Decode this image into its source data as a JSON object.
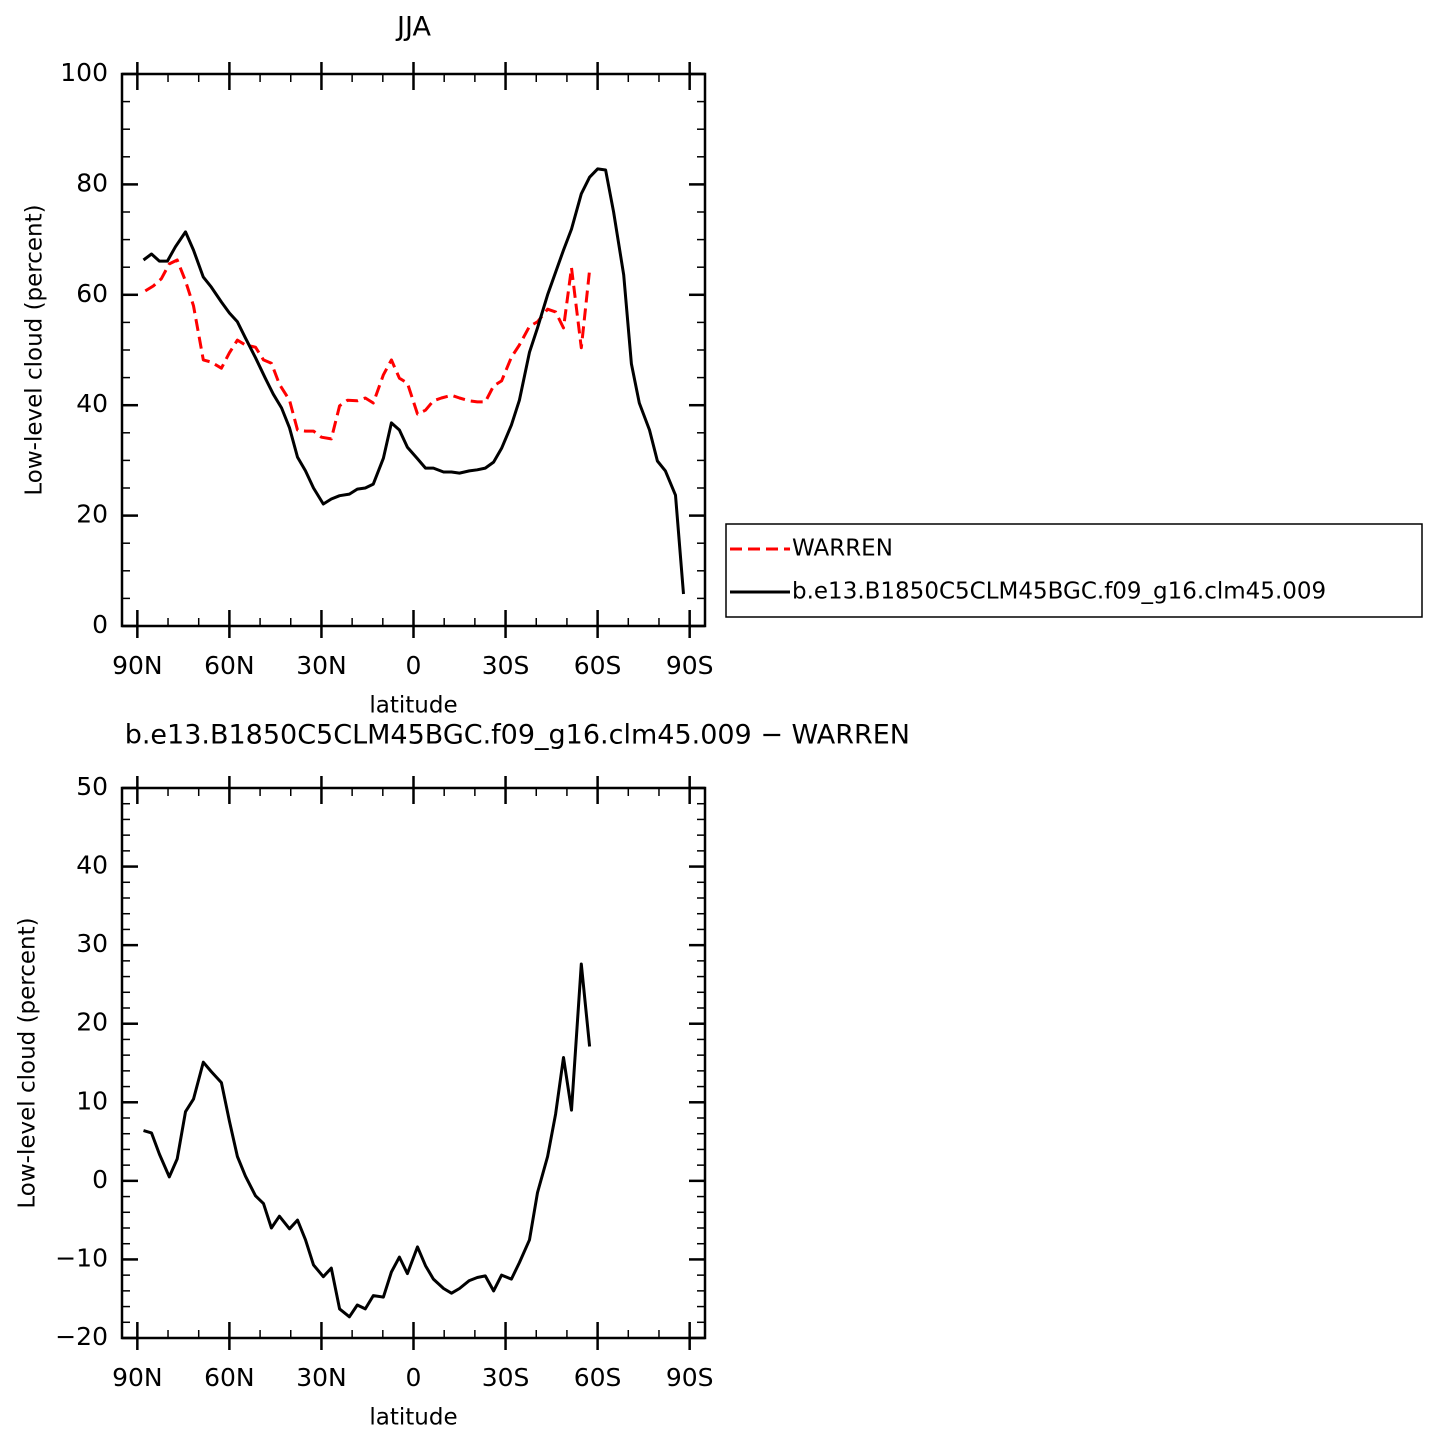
{
  "chart_data": [
    {
      "type": "line",
      "title": "JJA",
      "xlabel": "latitude",
      "ylabel": "Low-level cloud (percent)",
      "xlim": [
        95,
        -95
      ],
      "xticks": [
        {
          "value": 90,
          "label": "90N"
        },
        {
          "value": 60,
          "label": "60N"
        },
        {
          "value": 30,
          "label": "30N"
        },
        0,
        {
          "value": -30,
          "label": "30S"
        },
        {
          "value": -60,
          "label": "60S"
        },
        {
          "value": -90,
          "label": "90S"
        }
      ],
      "xminorticks": [
        80,
        70,
        50,
        40,
        20,
        10,
        -10,
        -20,
        -40,
        -50,
        -70,
        -80
      ],
      "ylim": [
        0,
        100
      ],
      "yticks": [
        0,
        20,
        40,
        60,
        80,
        100
      ],
      "yminorticks": [
        5,
        10,
        15,
        25,
        30,
        35,
        45,
        50,
        55,
        65,
        70,
        75,
        85,
        90,
        95
      ],
      "legend": "right",
      "series": [
        {
          "name": "WARREN",
          "color": "#ff0000",
          "dash": true,
          "x": [
            87.4,
            84.8,
            82.2,
            79.6,
            77.0,
            74.3,
            71.7,
            68.5,
            65.9,
            62.6,
            60.0,
            57.4,
            54.8,
            51.5,
            48.9,
            46.3,
            43.7,
            40.4,
            37.8,
            35.2,
            32.6,
            30.0,
            26.8,
            24.1,
            21.5,
            18.3,
            15.7,
            13.1,
            9.8,
            7.2,
            4.6,
            2.0,
            -1.3,
            -3.9,
            -6.5,
            -9.1,
            -12.4,
            -15.0,
            -18.2,
            -20.8,
            -23.4,
            -26.1,
            -28.7,
            -31.9,
            -34.5,
            -37.8,
            -40.4,
            -43.7,
            -46.3,
            -48.9,
            -51.5,
            -54.7,
            -57.4
          ],
          "values": [
            60.7,
            61.6,
            62.9,
            65.6,
            66.3,
            62.5,
            58.0,
            48.2,
            47.8,
            46.7,
            49.5,
            51.8,
            50.9,
            50.5,
            48.2,
            47.6,
            43.8,
            40.9,
            35.5,
            35.3,
            35.3,
            34.2,
            33.9,
            39.9,
            40.9,
            40.8,
            41.3,
            40.4,
            45.5,
            48.2,
            44.9,
            44.0,
            38.4,
            39.1,
            40.8,
            41.3,
            41.8,
            41.3,
            40.8,
            40.6,
            40.6,
            43.5,
            44.4,
            48.7,
            50.9,
            54.3,
            55.1,
            57.4,
            56.9,
            54.0,
            64.9,
            50.4,
            64.5
          ]
        },
        {
          "name": "b.e13.B1850C5CLM45BGC.f09_g16.clm45.009",
          "color": "#000000",
          "dash": false,
          "x": [
            88.0,
            85.4,
            82.8,
            80.2,
            77.6,
            74.3,
            71.7,
            68.5,
            65.9,
            62.6,
            60.0,
            57.4,
            54.8,
            51.5,
            48.3,
            45.7,
            43.0,
            40.4,
            37.8,
            35.2,
            32.6,
            29.4,
            26.8,
            24.1,
            20.9,
            18.3,
            15.7,
            13.1,
            9.8,
            7.2,
            4.6,
            2.0,
            -1.3,
            -3.9,
            -6.5,
            -9.8,
            -12.4,
            -15.0,
            -18.2,
            -20.8,
            -23.4,
            -26.1,
            -28.7,
            -31.9,
            -34.5,
            -37.8,
            -40.4,
            -43.7,
            -46.3,
            -48.9,
            -51.5,
            -54.7,
            -57.4,
            -60.0,
            -62.6,
            -65.2,
            -68.5,
            -71.0,
            -73.6,
            -76.9,
            -79.5,
            -82.1,
            -85.4,
            -88.0
          ],
          "values": [
            66.3,
            67.4,
            66.1,
            66.1,
            68.7,
            71.4,
            68.1,
            63.2,
            61.4,
            58.7,
            56.7,
            55.1,
            52.2,
            48.6,
            44.9,
            42.0,
            39.5,
            35.9,
            30.6,
            28.1,
            25.0,
            22.1,
            23.0,
            23.6,
            23.9,
            24.8,
            25.0,
            25.7,
            30.4,
            36.8,
            35.5,
            32.4,
            30.3,
            28.6,
            28.6,
            27.9,
            27.9,
            27.7,
            28.1,
            28.3,
            28.6,
            29.7,
            32.2,
            36.4,
            40.9,
            49.6,
            54.0,
            60.0,
            64.1,
            68.1,
            71.9,
            78.3,
            81.3,
            82.8,
            82.6,
            75.0,
            63.6,
            47.5,
            40.4,
            35.5,
            29.9,
            28.1,
            23.7,
            5.8
          ]
        }
      ]
    },
    {
      "type": "line",
      "title": "b.e13.B1850C5CLM45BGC.f09_g16.clm45.009 − WARREN",
      "xlabel": "latitude",
      "ylabel": "Low-level cloud (percent)",
      "xlim": [
        95,
        -95
      ],
      "xticks": [
        {
          "value": 90,
          "label": "90N"
        },
        {
          "value": 60,
          "label": "60N"
        },
        {
          "value": 30,
          "label": "30N"
        },
        0,
        {
          "value": -30,
          "label": "30S"
        },
        {
          "value": -60,
          "label": "60S"
        },
        {
          "value": -90,
          "label": "90S"
        }
      ],
      "xminorticks": [
        80,
        70,
        50,
        40,
        20,
        10,
        -10,
        -20,
        -40,
        -50,
        -70,
        -80
      ],
      "ylim": [
        -20,
        50
      ],
      "yticks": [
        {
          "value": -20,
          "label": "−20"
        },
        {
          "value": -10,
          "label": "−10"
        },
        0,
        10,
        20,
        30,
        40,
        50
      ],
      "yminorticks": [
        -18,
        -16,
        -14,
        -12,
        -8,
        -6,
        -4,
        -2,
        2,
        4,
        6,
        8,
        12,
        14,
        16,
        18,
        22,
        24,
        26,
        28,
        32,
        34,
        36,
        38,
        42,
        44,
        46,
        48
      ],
      "series": [
        {
          "color": "#000000",
          "dash": false,
          "x": [
            88.0,
            85.4,
            82.8,
            79.6,
            77.0,
            74.3,
            71.7,
            68.5,
            65.9,
            62.6,
            60.0,
            57.4,
            54.8,
            51.5,
            48.9,
            46.3,
            43.7,
            40.4,
            37.8,
            35.2,
            32.6,
            29.4,
            26.8,
            24.1,
            20.9,
            18.3,
            15.7,
            13.1,
            9.8,
            7.2,
            4.6,
            2.0,
            -1.3,
            -3.9,
            -6.5,
            -9.8,
            -12.4,
            -15.0,
            -18.2,
            -20.8,
            -23.4,
            -26.1,
            -28.7,
            -31.9,
            -34.5,
            -37.8,
            -40.4,
            -43.7,
            -46.3,
            -48.9,
            -51.5,
            -54.7,
            -57.4
          ],
          "values": [
            6.4,
            6.1,
            3.4,
            0.5,
            2.8,
            8.8,
            10.4,
            15.1,
            13.9,
            12.5,
            7.6,
            3.1,
            0.6,
            -1.9,
            -2.9,
            -6.0,
            -4.5,
            -6.1,
            -5.0,
            -7.5,
            -10.7,
            -12.2,
            -11.1,
            -16.3,
            -17.3,
            -15.8,
            -16.3,
            -14.6,
            -14.8,
            -11.6,
            -9.7,
            -11.8,
            -8.4,
            -10.8,
            -12.5,
            -13.7,
            -14.3,
            -13.7,
            -12.7,
            -12.3,
            -12.1,
            -14.0,
            -12.0,
            -12.5,
            -10.4,
            -7.5,
            -1.5,
            3.1,
            8.5,
            15.7,
            9.0,
            27.6,
            17.1
          ]
        }
      ]
    }
  ]
}
